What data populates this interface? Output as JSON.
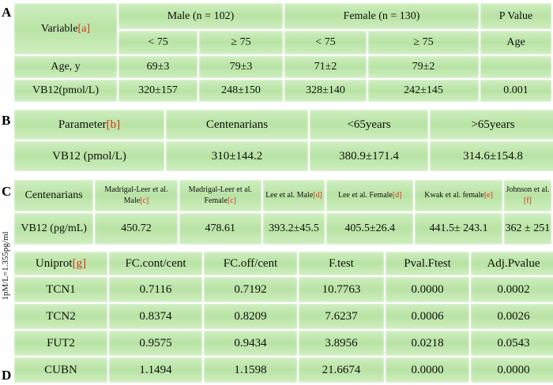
{
  "letters": {
    "a": "A",
    "b": "B",
    "c": "C",
    "d": "D"
  },
  "side_note": "1pM/L=1.355pg/ml",
  "table_a": {
    "variable_label": "Variable",
    "variable_ref": "[a]",
    "male": "Male (n = 102)",
    "female": "Female (n = 130)",
    "pvalue": "P Value",
    "lt75": "< 75",
    "ge75": "≥ 75",
    "age_sub": "Age",
    "rows": [
      {
        "label": "Age, y",
        "m_lt": "69±3",
        "m_ge": "79±3",
        "f_lt": "71±2",
        "f_ge": "79±2",
        "p": ""
      },
      {
        "label": "VB12(pmol/L)",
        "m_lt": "320±157",
        "m_ge": "248±150",
        "f_lt": "328±140",
        "f_ge": "242±145",
        "p": "0.001"
      }
    ]
  },
  "table_b": {
    "param_label": "Parameter",
    "param_ref": "[b]",
    "headers": [
      "Centenarians",
      "<65years",
      ">65years"
    ],
    "row_label": "VB12 (pmol/L)",
    "values": [
      "310±144.2",
      "380.9±171.4",
      "314.6±154.8"
    ]
  },
  "table_c": {
    "first_header": "Centenarians",
    "headers": [
      {
        "text": "Madrigal-Leer et al. Male",
        "ref": "[c]"
      },
      {
        "text": "Madrigal-Leer et al. Female",
        "ref": "[c]"
      },
      {
        "text": "Lee et al. Male",
        "ref": "[d]"
      },
      {
        "text": "Lee et al. Female",
        "ref": "[d]"
      },
      {
        "text": "Kwak et al. female",
        "ref": "[e]"
      },
      {
        "text": "Johnson et al.",
        "ref": "[f]"
      }
    ],
    "row_label": "VB12 (pg/mL)",
    "values": [
      "450.72",
      "478.61",
      "393.2±45.5",
      "405.5±26.4",
      "441.5± 243.1",
      "362 ± 251"
    ]
  },
  "table_d": {
    "uniprot_label": "Uniprot",
    "uniprot_ref": "[g]",
    "headers": [
      "FC.cont/cent",
      "FC.off/cent",
      "F.test",
      "Pval.Ftest",
      "Adj.Pvalue"
    ],
    "rows": [
      {
        "gene": "TCN1",
        "values": [
          "0.7116",
          "0.7192",
          "10.7763",
          "0.0000",
          "0.0002"
        ]
      },
      {
        "gene": "TCN2",
        "values": [
          "0.8374",
          "0.8209",
          "7.6237",
          "0.0006",
          "0.0026"
        ]
      },
      {
        "gene": "FUT2",
        "values": [
          "0.9575",
          "0.9434",
          "3.8956",
          "0.0218",
          "0.0543"
        ]
      },
      {
        "gene": "CUBN",
        "values": [
          "1.1494",
          "1.1598",
          "21.6674",
          "0.0000",
          "0.0000"
        ]
      }
    ]
  }
}
